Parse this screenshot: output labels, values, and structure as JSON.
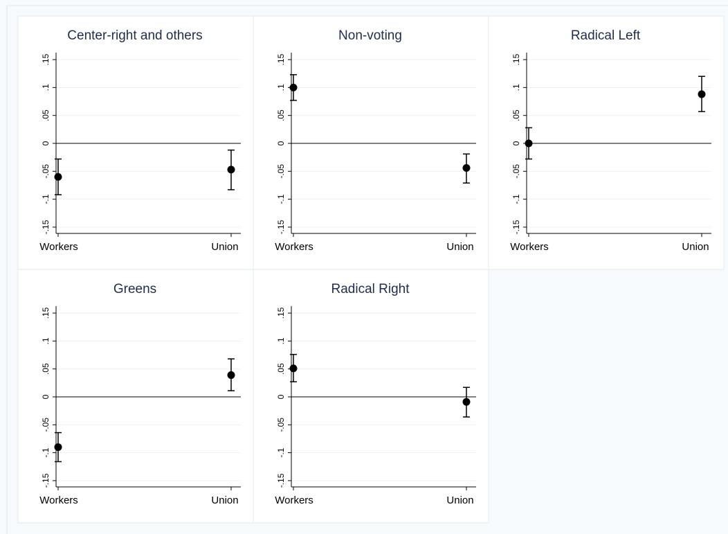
{
  "chart_data": [
    {
      "type": "scatter",
      "title": "Center-right and others",
      "categories": [
        "Workers",
        "Union"
      ],
      "y_ticks": [
        ".15",
        ".1",
        ".05",
        "0",
        "-.05",
        "-.1",
        "-.15"
      ],
      "ylim": [
        -0.16,
        0.16
      ],
      "reference_line": 0,
      "grid": true,
      "estimates": [
        -0.06,
        -0.047
      ],
      "ci_lower": [
        -0.092,
        -0.083
      ],
      "ci_upper": [
        -0.028,
        -0.012
      ]
    },
    {
      "type": "scatter",
      "title": "Non-voting",
      "categories": [
        "Workers",
        "Union"
      ],
      "y_ticks": [
        ".15",
        ".1",
        ".05",
        "0",
        "-.05",
        "-.1",
        "-.15"
      ],
      "ylim": [
        -0.16,
        0.16
      ],
      "reference_line": 0,
      "grid": true,
      "estimates": [
        0.1,
        -0.044
      ],
      "ci_lower": [
        0.077,
        -0.071
      ],
      "ci_upper": [
        0.123,
        -0.019
      ]
    },
    {
      "type": "scatter",
      "title": "Radical Left",
      "categories": [
        "Workers",
        "Union"
      ],
      "y_ticks": [
        ".15",
        ".1",
        ".05",
        "0",
        "-.05",
        "-.1",
        "-.15"
      ],
      "ylim": [
        -0.16,
        0.16
      ],
      "reference_line": 0,
      "grid": true,
      "estimates": [
        0.0,
        0.088
      ],
      "ci_lower": [
        -0.028,
        0.057
      ],
      "ci_upper": [
        0.028,
        0.12
      ]
    },
    {
      "type": "scatter",
      "title": "Greens",
      "categories": [
        "Workers",
        "Union"
      ],
      "y_ticks": [
        ".15",
        ".1",
        ".05",
        "0",
        "-.05",
        "-.1",
        "-.15"
      ],
      "ylim": [
        -0.16,
        0.16
      ],
      "reference_line": 0,
      "grid": true,
      "estimates": [
        -0.09,
        0.039
      ],
      "ci_lower": [
        -0.116,
        0.011
      ],
      "ci_upper": [
        -0.064,
        0.068
      ]
    },
    {
      "type": "scatter",
      "title": "Radical Right",
      "categories": [
        "Workers",
        "Union"
      ],
      "y_ticks": [
        ".15",
        ".1",
        ".05",
        "0",
        "-.05",
        "-.1",
        "-.15"
      ],
      "ylim": [
        -0.16,
        0.16
      ],
      "reference_line": 0,
      "grid": true,
      "estimates": [
        0.051,
        -0.009
      ],
      "ci_lower": [
        0.027,
        -0.036
      ],
      "ci_upper": [
        0.076,
        0.017
      ]
    }
  ]
}
